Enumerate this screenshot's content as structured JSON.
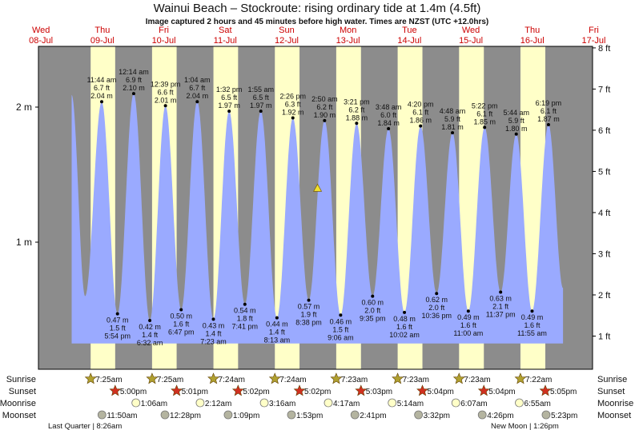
{
  "chart_data": {
    "type": "area",
    "title": "Wainui Beach – Stockroute: rising  ordinary tide at 1.4m (4.5ft)",
    "subtitle": "Image captured 2 hours and 45 minutes before high water. Times are NZST (UTC +12.0hrs)",
    "x_ticks": [
      {
        "day": "Wed",
        "date": "08-Jul"
      },
      {
        "day": "Thu",
        "date": "09-Jul"
      },
      {
        "day": "Fri",
        "date": "10-Jul"
      },
      {
        "day": "Sat",
        "date": "11-Jul"
      },
      {
        "day": "Sun",
        "date": "12-Jul"
      },
      {
        "day": "Mon",
        "date": "13-Jul"
      },
      {
        "day": "Tue",
        "date": "14-Jul"
      },
      {
        "day": "Wed",
        "date": "15-Jul"
      },
      {
        "day": "Thu",
        "date": "16-Jul"
      },
      {
        "day": "Fri",
        "date": "17-Jul"
      }
    ],
    "y_left_ticks": [
      {
        "value_m": 1,
        "label": "1 m"
      },
      {
        "value_m": 2,
        "label": "2 m"
      }
    ],
    "y_right_ticks": [
      {
        "value_ft": 1,
        "label": "1 ft"
      },
      {
        "value_ft": 2,
        "label": "2 ft"
      },
      {
        "value_ft": 3,
        "label": "3 ft"
      },
      {
        "value_ft": 4,
        "label": "4 ft"
      },
      {
        "value_ft": 5,
        "label": "5 ft"
      },
      {
        "value_ft": 6,
        "label": "6 ft"
      },
      {
        "value_ft": 7,
        "label": "7 ft"
      },
      {
        "value_ft": 8,
        "label": "8 ft"
      }
    ],
    "y_range_m": [
      0.25,
      2.5
    ],
    "current": {
      "date": "13-Jul",
      "time": "12:05 am",
      "m": 1.4
    },
    "curve_endpoints": [
      {
        "date": "09-Jul",
        "time": "12:00 am",
        "m": 2.09,
        "type": "high"
      },
      {
        "date": "09-Jul",
        "time": "5:15 am",
        "m": 0.6,
        "type": "low"
      },
      {
        "date": "17-Jul",
        "time": "12:00 am",
        "m": 0.66,
        "type": "end"
      }
    ],
    "extremes": [
      {
        "date": "09-Jul",
        "time": "11:44 am",
        "ft": "6.7 ft",
        "m": "2.04 m",
        "type": "high"
      },
      {
        "date": "09-Jul",
        "time": "5:54 pm",
        "ft": "1.5 ft",
        "m": "0.47 m",
        "type": "low"
      },
      {
        "date": "10-Jul",
        "time": "12:14 am",
        "ft": "6.9 ft",
        "m": "2.10 m",
        "type": "high"
      },
      {
        "date": "10-Jul",
        "time": "6:32 am",
        "ft": "1.4 ft",
        "m": "0.42 m",
        "type": "low"
      },
      {
        "date": "10-Jul",
        "time": "12:39 pm",
        "ft": "6.6 ft",
        "m": "2.01 m",
        "type": "high"
      },
      {
        "date": "10-Jul",
        "time": "6:47 pm",
        "ft": "1.6 ft",
        "m": "0.50 m",
        "type": "low"
      },
      {
        "date": "11-Jul",
        "time": "1:04 am",
        "ft": "6.7 ft",
        "m": "2.04 m",
        "type": "high"
      },
      {
        "date": "11-Jul",
        "time": "7:23 am",
        "ft": "1.4 ft",
        "m": "0.43 m",
        "type": "low"
      },
      {
        "date": "11-Jul",
        "time": "1:32 pm",
        "ft": "6.5 ft",
        "m": "1.97 m",
        "type": "high"
      },
      {
        "date": "11-Jul",
        "time": "7:41 pm",
        "ft": "1.8 ft",
        "m": "0.54 m",
        "type": "low"
      },
      {
        "date": "12-Jul",
        "time": "1:55 am",
        "ft": "6.5 ft",
        "m": "1.97 m",
        "type": "high"
      },
      {
        "date": "12-Jul",
        "time": "8:13 am",
        "ft": "1.4 ft",
        "m": "0.44 m",
        "type": "low"
      },
      {
        "date": "12-Jul",
        "time": "2:26 pm",
        "ft": "6.3 ft",
        "m": "1.92 m",
        "type": "high"
      },
      {
        "date": "12-Jul",
        "time": "8:38 pm",
        "ft": "1.9 ft",
        "m": "0.57 m",
        "type": "low"
      },
      {
        "date": "13-Jul",
        "time": "2:50 am",
        "ft": "6.2 ft",
        "m": "1.90 m",
        "type": "high"
      },
      {
        "date": "13-Jul",
        "time": "9:06 am",
        "ft": "1.5 ft",
        "m": "0.46 m",
        "type": "low"
      },
      {
        "date": "13-Jul",
        "time": "3:21 pm",
        "ft": "6.2 ft",
        "m": "1.88 m",
        "type": "high"
      },
      {
        "date": "13-Jul",
        "time": "9:35 pm",
        "ft": "2.0 ft",
        "m": "0.60 m",
        "type": "low"
      },
      {
        "date": "14-Jul",
        "time": "3:48 am",
        "ft": "6.0 ft",
        "m": "1.84 m",
        "type": "high"
      },
      {
        "date": "14-Jul",
        "time": "10:02 am",
        "ft": "1.6 ft",
        "m": "0.48 m",
        "type": "low"
      },
      {
        "date": "14-Jul",
        "time": "4:20 pm",
        "ft": "6.1 ft",
        "m": "1.86 m",
        "type": "high"
      },
      {
        "date": "14-Jul",
        "time": "10:36 pm",
        "ft": "2.0 ft",
        "m": "0.62 m",
        "type": "low"
      },
      {
        "date": "15-Jul",
        "time": "4:48 am",
        "ft": "5.9 ft",
        "m": "1.81 m",
        "type": "high"
      },
      {
        "date": "15-Jul",
        "time": "11:00 am",
        "ft": "1.6 ft",
        "m": "0.49 m",
        "type": "low"
      },
      {
        "date": "15-Jul",
        "time": "5:22 pm",
        "ft": "6.1 ft",
        "m": "1.85 m",
        "type": "high"
      },
      {
        "date": "15-Jul",
        "time": "11:37 pm",
        "ft": "2.1 ft",
        "m": "0.63 m",
        "type": "low"
      },
      {
        "date": "16-Jul",
        "time": "5:44 am",
        "ft": "5.9 ft",
        "m": "1.80 m",
        "type": "high"
      },
      {
        "date": "16-Jul",
        "time": "11:55 am",
        "ft": "1.6 ft",
        "m": "0.49 m",
        "type": "low"
      },
      {
        "date": "16-Jul",
        "time": "6:19 pm",
        "ft": "6.1 ft",
        "m": "1.87 m",
        "type": "high"
      }
    ],
    "row_labels": {
      "sunrise": "Sunrise",
      "sunset": "Sunset",
      "moonrise": "Moonrise",
      "moonset": "Moonset"
    },
    "sunrise": [
      {
        "date": "09-Jul",
        "time": "7:25am"
      },
      {
        "date": "10-Jul",
        "time": "7:25am"
      },
      {
        "date": "11-Jul",
        "time": "7:24am"
      },
      {
        "date": "12-Jul",
        "time": "7:24am"
      },
      {
        "date": "13-Jul",
        "time": "7:23am"
      },
      {
        "date": "14-Jul",
        "time": "7:23am"
      },
      {
        "date": "15-Jul",
        "time": "7:23am"
      },
      {
        "date": "16-Jul",
        "time": "7:22am"
      }
    ],
    "sunset": [
      {
        "date": "09-Jul",
        "time": "5:00pm"
      },
      {
        "date": "10-Jul",
        "time": "5:01pm"
      },
      {
        "date": "11-Jul",
        "time": "5:02pm"
      },
      {
        "date": "12-Jul",
        "time": "5:02pm"
      },
      {
        "date": "13-Jul",
        "time": "5:03pm"
      },
      {
        "date": "14-Jul",
        "time": "5:04pm"
      },
      {
        "date": "15-Jul",
        "time": "5:04pm"
      },
      {
        "date": "16-Jul",
        "time": "5:05pm"
      }
    ],
    "moonrise": [
      {
        "date": "10-Jul",
        "time": "1:06am"
      },
      {
        "date": "11-Jul",
        "time": "2:12am"
      },
      {
        "date": "12-Jul",
        "time": "3:16am"
      },
      {
        "date": "13-Jul",
        "time": "4:17am"
      },
      {
        "date": "14-Jul",
        "time": "5:14am"
      },
      {
        "date": "15-Jul",
        "time": "6:07am"
      },
      {
        "date": "16-Jul",
        "time": "6:55am"
      }
    ],
    "moonset": [
      {
        "date": "09-Jul",
        "time": "11:50am"
      },
      {
        "date": "10-Jul",
        "time": "12:28pm"
      },
      {
        "date": "11-Jul",
        "time": "1:09pm"
      },
      {
        "date": "12-Jul",
        "time": "1:53pm"
      },
      {
        "date": "13-Jul",
        "time": "2:41pm"
      },
      {
        "date": "14-Jul",
        "time": "3:32pm"
      },
      {
        "date": "15-Jul",
        "time": "4:26pm"
      },
      {
        "date": "16-Jul",
        "time": "5:23pm"
      }
    ],
    "moon_phases": [
      {
        "date": "09-Jul",
        "label": "Last Quarter | 8:26am"
      },
      {
        "date": "16-Jul",
        "label": "New Moon | 1:26pm"
      }
    ],
    "colors": {
      "night": "#8c8c8c",
      "day": "#ffffc8",
      "water": "#9aaaff",
      "day_label": "#cc0000",
      "sunrise_star": "#b0a030",
      "sunset_star": "#d03020",
      "moonrise": "#ffffc8",
      "moonset": "#b4b4a0"
    }
  }
}
